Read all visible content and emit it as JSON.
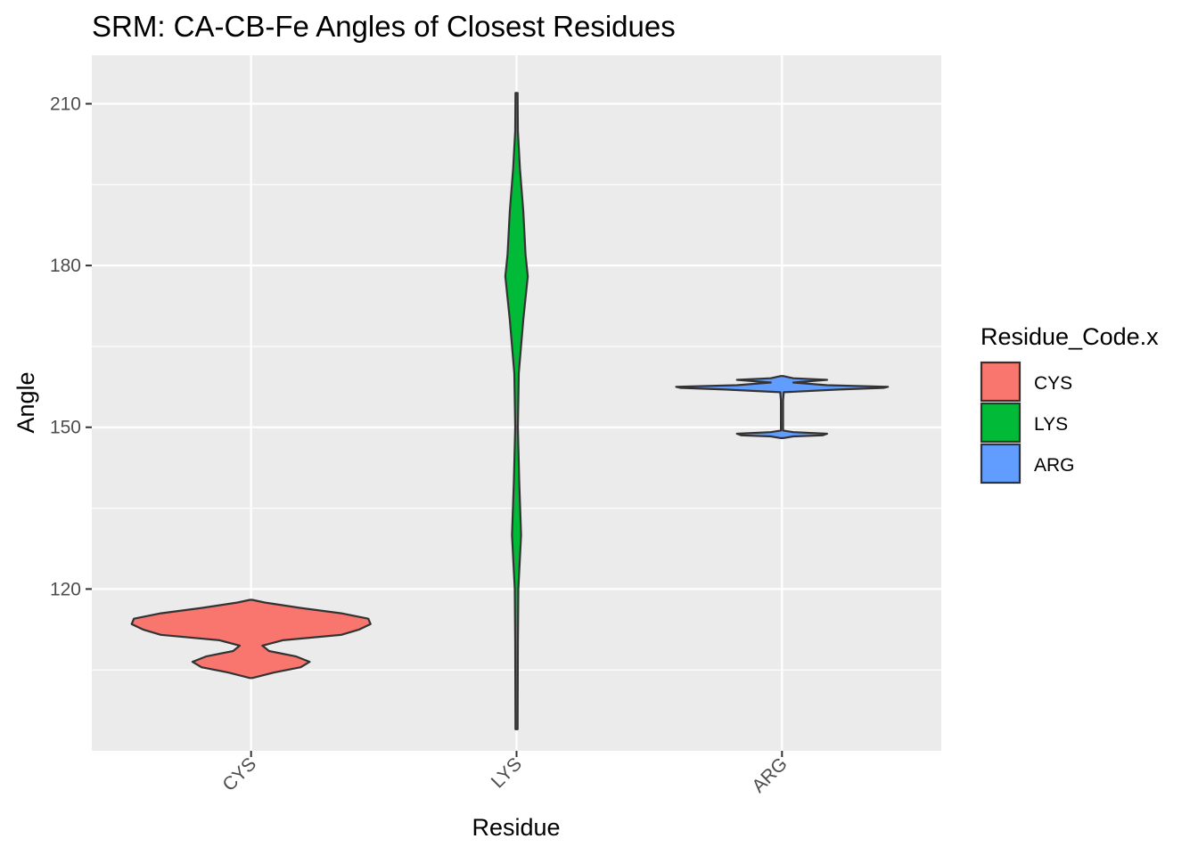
{
  "chart_data": {
    "type": "violin",
    "title": "SRM: CA-CB-Fe Angles of Closest Residues",
    "xlabel": "Residue",
    "ylabel": "Angle",
    "categories": [
      "CYS",
      "LYS",
      "ARG"
    ],
    "y_ticks": [
      120,
      150,
      180,
      210
    ],
    "ylim": [
      90,
      219
    ],
    "grid": true,
    "legend": {
      "title": "Residue_Code.x",
      "position": "right",
      "entries": [
        "CYS",
        "LYS",
        "ARG"
      ]
    },
    "series": [
      {
        "name": "CYS",
        "color": "#F8766D",
        "y_min": 103.5,
        "y_max": 118.0,
        "profile": [
          [
            103.5,
            0.0
          ],
          [
            104.5,
            0.1
          ],
          [
            105.5,
            0.22
          ],
          [
            106.5,
            0.26
          ],
          [
            107.5,
            0.2
          ],
          [
            108.5,
            0.08
          ],
          [
            109.5,
            0.05
          ],
          [
            110.5,
            0.14
          ],
          [
            111.5,
            0.4
          ],
          [
            112.5,
            0.48
          ],
          [
            113.5,
            0.53
          ],
          [
            114.5,
            0.52
          ],
          [
            115.5,
            0.4
          ],
          [
            116.5,
            0.22
          ],
          [
            117.5,
            0.06
          ],
          [
            118.0,
            0.0
          ]
        ]
      },
      {
        "name": "LYS",
        "color": "#00BA38",
        "y_min": 94.0,
        "y_max": 212.0,
        "profile": [
          [
            94,
            0.004
          ],
          [
            110,
            0.006
          ],
          [
            120,
            0.008
          ],
          [
            130,
            0.02
          ],
          [
            140,
            0.012
          ],
          [
            150,
            0.006
          ],
          [
            155,
            0.008
          ],
          [
            160,
            0.01
          ],
          [
            170,
            0.03
          ],
          [
            178,
            0.05
          ],
          [
            182,
            0.04
          ],
          [
            190,
            0.03
          ],
          [
            198,
            0.015
          ],
          [
            205,
            0.006
          ],
          [
            212,
            0.004
          ]
        ]
      },
      {
        "name": "ARG",
        "color": "#619CFF",
        "y_min": 148.0,
        "y_max": 159.5,
        "profile": [
          [
            148.0,
            0.0
          ],
          [
            148.3,
            0.05
          ],
          [
            148.5,
            0.18
          ],
          [
            148.8,
            0.2
          ],
          [
            149.1,
            0.05
          ],
          [
            149.4,
            0.004
          ],
          [
            152.0,
            0.004
          ],
          [
            155.0,
            0.004
          ],
          [
            156.5,
            0.008
          ],
          [
            157.0,
            0.25
          ],
          [
            157.3,
            0.45
          ],
          [
            157.5,
            0.47
          ],
          [
            157.8,
            0.2
          ],
          [
            158.3,
            0.05
          ],
          [
            158.8,
            0.2
          ],
          [
            159.1,
            0.05
          ],
          [
            159.5,
            0.0
          ]
        ]
      }
    ]
  }
}
